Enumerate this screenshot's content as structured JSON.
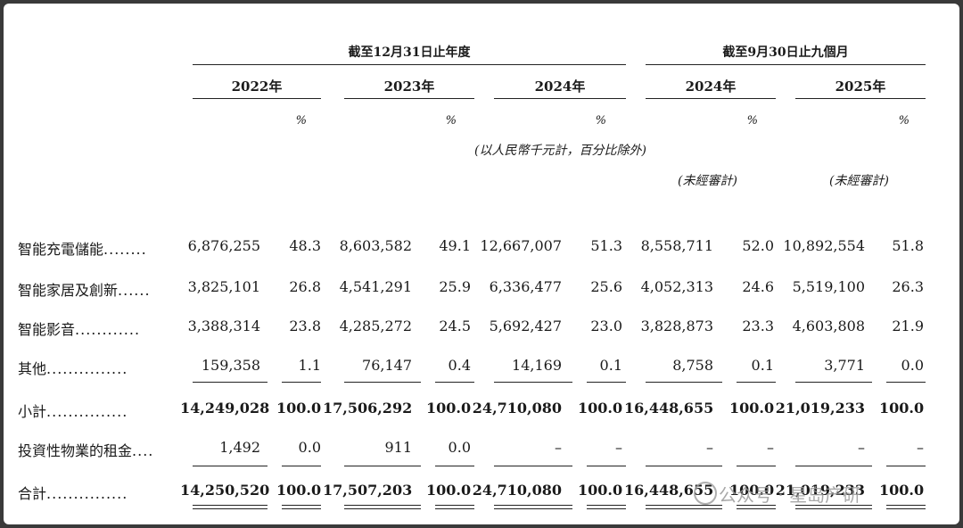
{
  "header": {
    "group_fy": "截至12月31日止年度",
    "group_9m": "截至9月30日止九個月",
    "years": [
      "2022年",
      "2023年",
      "2024年",
      "2024年",
      "2025年"
    ],
    "pct_symbol": "%",
    "unit_note": "(以人民幣千元計，百分比除外)",
    "unaudited": "(未經審計)"
  },
  "rows": [
    {
      "label": "智能充電儲能",
      "dots": "........",
      "cells": [
        "6,876,255",
        "48.3",
        "8,603,582",
        "49.1",
        "12,667,007",
        "51.3",
        "8,558,711",
        "52.0",
        "10,892,554",
        "51.8"
      ]
    },
    {
      "label": "智能家居及創新",
      "dots": "......",
      "cells": [
        "3,825,101",
        "26.8",
        "4,541,291",
        "25.9",
        "6,336,477",
        "25.6",
        "4,052,313",
        "24.6",
        "5,519,100",
        "26.3"
      ]
    },
    {
      "label": "智能影音",
      "dots": "............",
      "cells": [
        "3,388,314",
        "23.8",
        "4,285,272",
        "24.5",
        "5,692,427",
        "23.0",
        "3,828,873",
        "23.3",
        "4,603,808",
        "21.9"
      ]
    },
    {
      "label": "其他",
      "dots": "...............",
      "cells": [
        "159,358",
        "1.1",
        "76,147",
        "0.4",
        "14,169",
        "0.1",
        "8,758",
        "0.1",
        "3,771",
        "0.0"
      ]
    },
    {
      "label": "小計",
      "dots": "...............",
      "cells": [
        "14,249,028",
        "100.0",
        "17,506,292",
        "100.0",
        "24,710,080",
        "100.0",
        "16,448,655",
        "100.0",
        "21,019,233",
        "100.0"
      ]
    },
    {
      "label": "投資性物業的租金",
      "dots": "....",
      "cells": [
        "1,492",
        "0.0",
        "911",
        "0.0",
        "–",
        "–",
        "–",
        "–",
        "–",
        "–"
      ]
    },
    {
      "label": "合計",
      "dots": "...............",
      "cells": [
        "14,250,520",
        "100.0",
        "17,507,203",
        "100.0",
        "24,710,080",
        "100.0",
        "16,448,655",
        "100.0",
        "21,019,233",
        "100.0"
      ]
    }
  ],
  "watermark": {
    "text": "公众号 · 星岛产研"
  }
}
